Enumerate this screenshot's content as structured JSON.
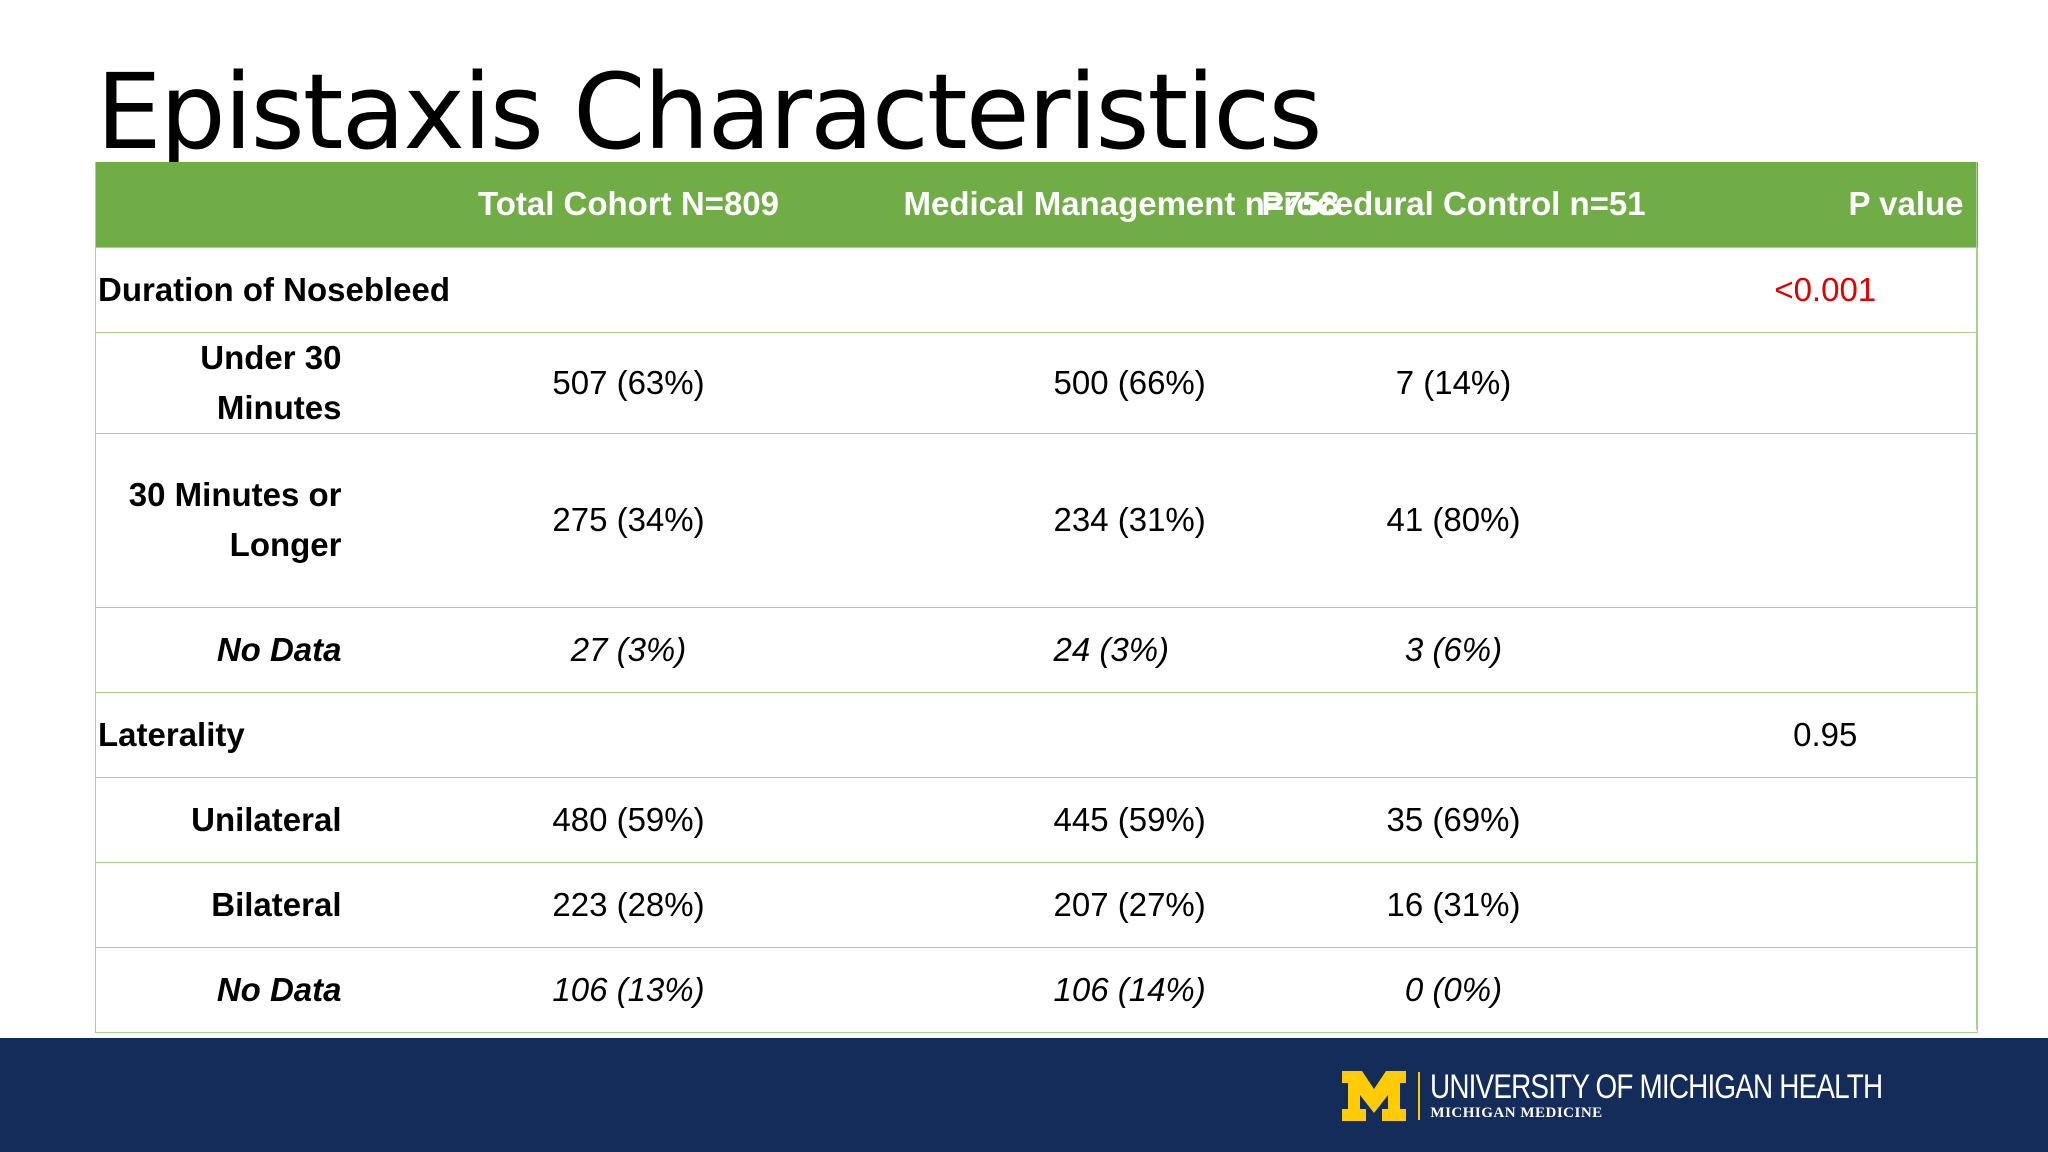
{
  "title": "Epistaxis Characteristics",
  "table": {
    "headers": [
      "",
      "Total Cohort N=809",
      "Medical Management n=758",
      "Procedural Control n=51",
      "P value"
    ],
    "sections": [
      {
        "label": "Duration of Nosebleed",
        "p_value": "<0.001",
        "rows": [
          {
            "label": "Under 30 Minutes",
            "total": "507 (63%)",
            "medical": "500 (66%)",
            "procedural": "7 (14%)"
          },
          {
            "label": "30 Minutes or Longer",
            "total": "275 (34%)",
            "medical": "234 (31%)",
            "procedural": "41 (80%)"
          },
          {
            "label": "No Data",
            "total": "27 (3%)",
            "medical": "24 (3%)",
            "procedural": "3 (6%)"
          }
        ]
      },
      {
        "label": "Laterality",
        "p_value": "0.95",
        "rows": [
          {
            "label": "Unilateral",
            "total": "480 (59%)",
            "medical": "445 (59%)",
            "procedural": "35 (69%)"
          },
          {
            "label": "Bilateral",
            "total": "223 (28%)",
            "medical": "207 (27%)",
            "procedural": "16 (31%)"
          },
          {
            "label": "No Data",
            "total": "106 (13%)",
            "medical": "106 (14%)",
            "procedural": "0 (0%)"
          }
        ]
      }
    ]
  },
  "colors": {
    "header_bg": "#70ad47",
    "border": "#a9d08e",
    "significant": "#e10000",
    "footer_bg": "#142c5a",
    "maize": "#ffcb05"
  },
  "footer": {
    "logo_main": "UNIVERSITY OF MICHIGAN HEALTH",
    "logo_sub": "MICHIGAN MEDICINE",
    "logo_icon": "block-m-icon"
  }
}
